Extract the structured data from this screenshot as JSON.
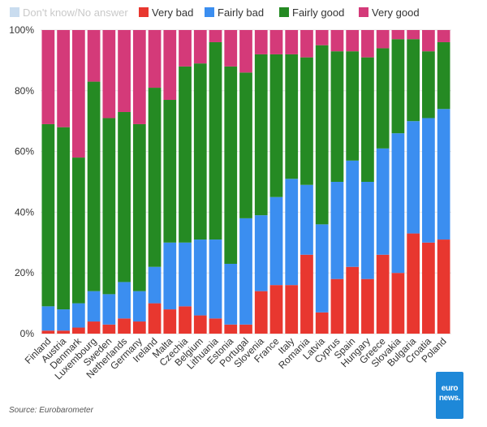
{
  "legend": {
    "dont_know": "Don't know/No answer",
    "very_bad": "Very bad",
    "fairly_bad": "Fairly bad",
    "fairly_good": "Fairly good",
    "very_good": "Very good"
  },
  "colors": {
    "dont_know": "#c9dcef",
    "very_bad": "#e8372f",
    "fairly_bad": "#3b8ef0",
    "fairly_good": "#258a23",
    "very_good": "#d43a79",
    "grid": "#e6e6e6",
    "axis_text": "#333333"
  },
  "source": "Source: Eurobarometer",
  "logo": {
    "line1": "euro",
    "line2": "news."
  },
  "chart_data": {
    "type": "bar",
    "stacked": true,
    "percent": true,
    "ylim": [
      0,
      100
    ],
    "yticks": [
      "0%",
      "20%",
      "40%",
      "60%",
      "80%",
      "100%"
    ],
    "yticks_values": [
      0,
      20,
      40,
      60,
      80,
      100
    ],
    "categories": [
      "Finland",
      "Austria",
      "Denmark",
      "Luxembourg",
      "Sweden",
      "Netherlands",
      "Germany",
      "Ireland",
      "Malta",
      "Czechia",
      "Belgium",
      "Lithuania",
      "Estonia",
      "Portugal",
      "Slovenia",
      "France",
      "Italy",
      "Romania",
      "Latvia",
      "Cyprus",
      "Spain",
      "Hungary",
      "Greece",
      "Slovakia",
      "Bulgaria",
      "Croatia",
      "Poland"
    ],
    "series": [
      {
        "key": "very_bad",
        "name": "Very bad",
        "values": [
          1,
          1,
          2,
          4,
          3,
          5,
          4,
          10,
          8,
          9,
          6,
          5,
          3,
          3,
          14,
          16,
          16,
          26,
          7,
          18,
          22,
          18,
          26,
          20,
          33,
          30,
          31
        ]
      },
      {
        "key": "fairly_bad",
        "name": "Fairly bad",
        "values": [
          8,
          7,
          8,
          10,
          10,
          12,
          10,
          12,
          22,
          21,
          25,
          26,
          20,
          35,
          25,
          29,
          35,
          23,
          29,
          32,
          35,
          32,
          35,
          46,
          37,
          41,
          43
        ]
      },
      {
        "key": "fairly_good",
        "name": "Fairly good",
        "values": [
          60,
          60,
          48,
          69,
          58,
          56,
          55,
          59,
          47,
          58,
          58,
          65,
          65,
          48,
          53,
          47,
          41,
          42,
          59,
          43,
          36,
          41,
          33,
          31,
          27,
          22,
          22
        ]
      },
      {
        "key": "very_good",
        "name": "Very good",
        "values": [
          31,
          32,
          42,
          17,
          29,
          27,
          31,
          19,
          23,
          12,
          11,
          4,
          12,
          14,
          8,
          8,
          8,
          9,
          5,
          7,
          7,
          9,
          6,
          3,
          3,
          7,
          4
        ]
      },
      {
        "key": "dont_know",
        "name": "Don't know/No answer",
        "values": [
          0,
          0,
          0,
          0,
          0,
          0,
          0,
          0,
          0,
          0,
          0,
          0,
          0,
          0,
          0,
          0,
          0,
          0,
          0,
          0,
          0,
          0,
          0,
          0,
          0,
          0,
          0
        ]
      }
    ]
  }
}
